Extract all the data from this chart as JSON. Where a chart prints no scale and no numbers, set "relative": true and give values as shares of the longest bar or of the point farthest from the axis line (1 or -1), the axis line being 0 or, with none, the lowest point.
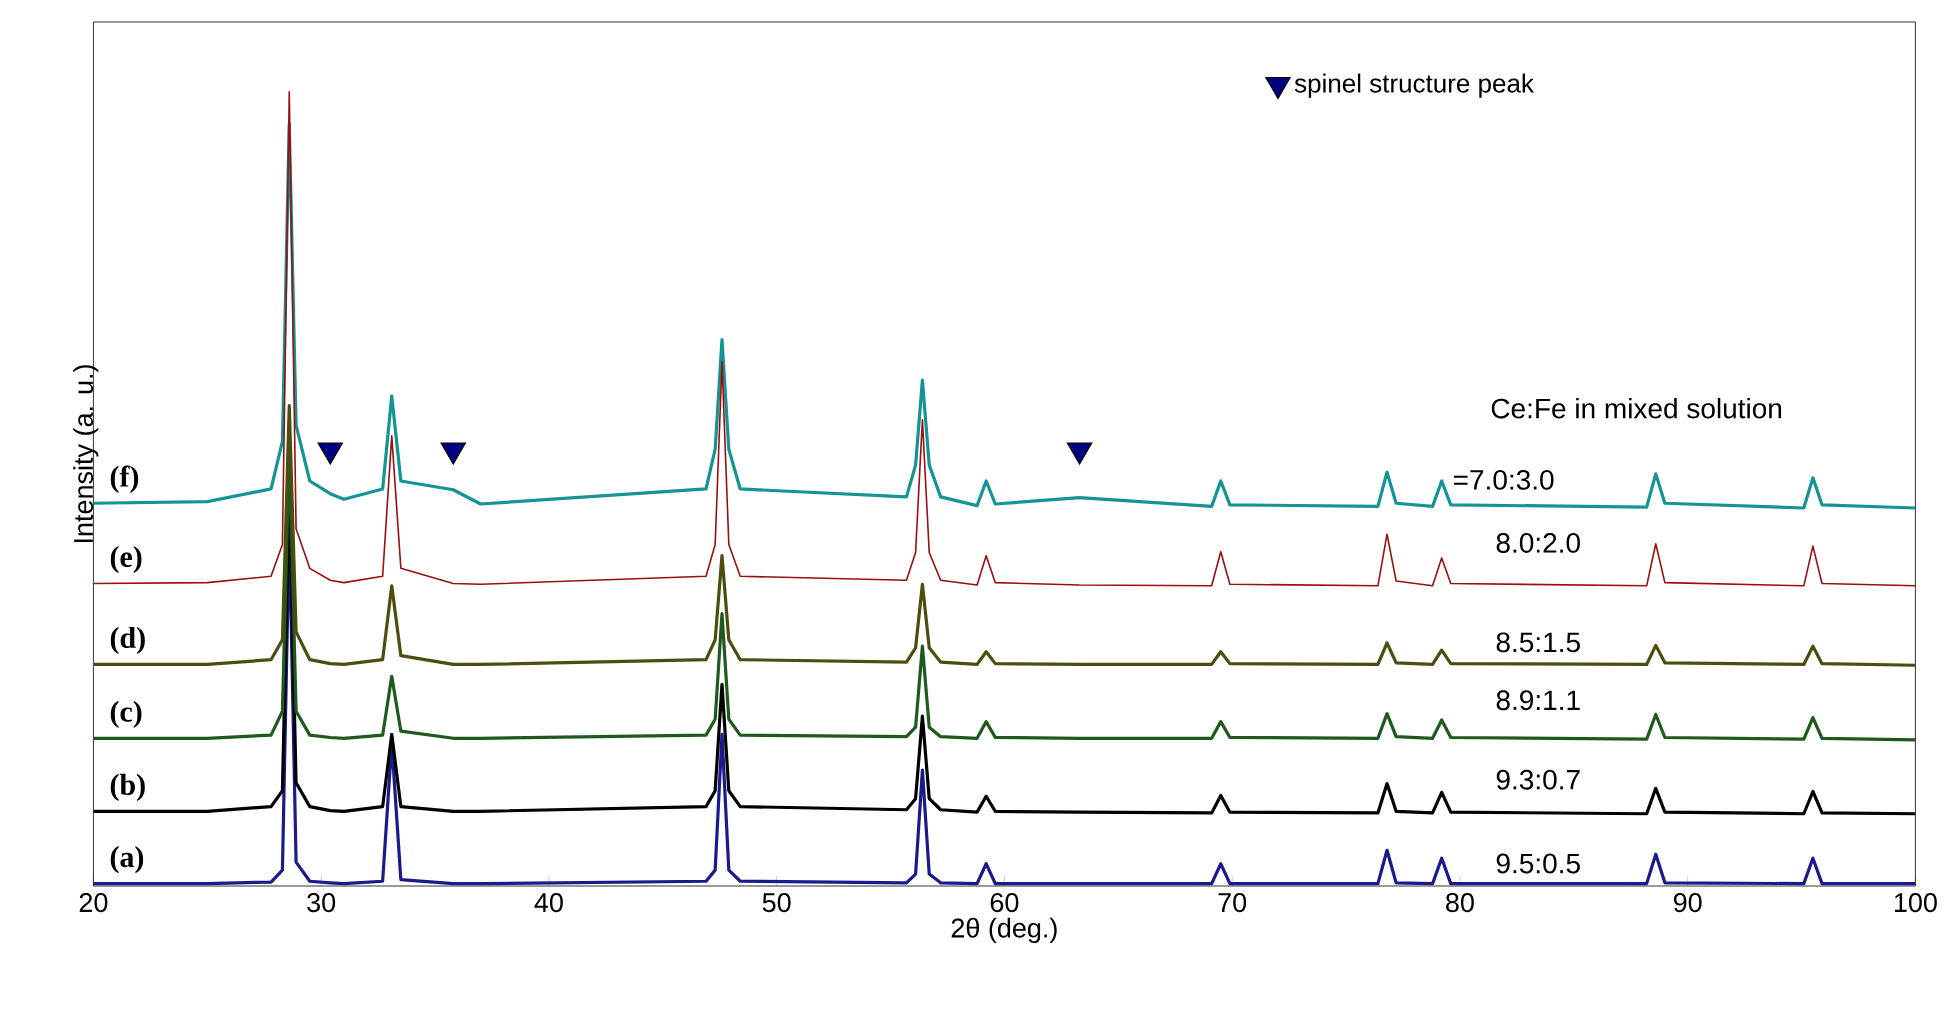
{
  "chart_data": {
    "type": "line",
    "relative": true,
    "xlabel": "2θ (deg.)",
    "ylabel": "Intensity (a. u.)",
    "xlim": [
      20,
      100
    ],
    "xticks": [
      20,
      30,
      40,
      50,
      60,
      70,
      80,
      90,
      100
    ],
    "tick_labels": "x",
    "legend": "top right",
    "x": [
      20,
      25,
      27.8,
      28.3,
      28.6,
      28.9,
      29.5,
      30.4,
      31,
      32.7,
      33.1,
      33.5,
      35.8,
      37,
      46.9,
      47.3,
      47.6,
      47.9,
      48.4,
      55.7,
      56.1,
      56.4,
      56.7,
      57.2,
      58.8,
      59.2,
      59.6,
      63.3,
      69.1,
      69.5,
      69.9,
      76.4,
      76.8,
      77.2,
      78.8,
      79.2,
      79.6,
      88.2,
      88.6,
      89.0,
      95.1,
      95.5,
      95.9,
      100
    ],
    "series": [
      {
        "name": "(a)",
        "color": "#1a1a8c",
        "values": [
          0.003,
          0.003,
          0.005,
          0.02,
          0.45,
          0.03,
          0.006,
          0.004,
          0.003,
          0.006,
          0.18,
          0.008,
          0.003,
          0.003,
          0.006,
          0.02,
          0.191,
          0.02,
          0.006,
          0.004,
          0.015,
          0.146,
          0.015,
          0.004,
          0.003,
          0.028,
          0.003,
          0.003,
          0.003,
          0.028,
          0.003,
          0.003,
          0.045,
          0.004,
          0.003,
          0.035,
          0.003,
          0.003,
          0.04,
          0.004,
          0.003,
          0.035,
          0.003,
          0.003
        ]
      },
      {
        "name": "(b)",
        "color": "#000000",
        "values": [
          0.094,
          0.094,
          0.1,
          0.12,
          0.5,
          0.13,
          0.1,
          0.095,
          0.094,
          0.1,
          0.191,
          0.1,
          0.094,
          0.094,
          0.1,
          0.12,
          0.254,
          0.12,
          0.1,
          0.096,
          0.11,
          0.214,
          0.11,
          0.096,
          0.093,
          0.113,
          0.094,
          0.093,
          0.092,
          0.114,
          0.093,
          0.092,
          0.129,
          0.094,
          0.092,
          0.118,
          0.093,
          0.091,
          0.123,
          0.093,
          0.091,
          0.119,
          0.092,
          0.091
        ]
      },
      {
        "name": "(c)",
        "color": "#1e5a1e",
        "values": [
          0.186,
          0.186,
          0.19,
          0.22,
          0.55,
          0.22,
          0.19,
          0.187,
          0.186,
          0.19,
          0.264,
          0.195,
          0.186,
          0.186,
          0.19,
          0.21,
          0.343,
          0.21,
          0.19,
          0.188,
          0.2,
          0.302,
          0.2,
          0.188,
          0.186,
          0.207,
          0.187,
          0.186,
          0.186,
          0.207,
          0.187,
          0.186,
          0.217,
          0.188,
          0.186,
          0.209,
          0.187,
          0.185,
          0.216,
          0.187,
          0.185,
          0.212,
          0.186,
          0.184
        ]
      },
      {
        "name": "(d)",
        "color": "#4d4d10",
        "values": [
          0.279,
          0.279,
          0.285,
          0.31,
          0.605,
          0.32,
          0.285,
          0.28,
          0.279,
          0.285,
          0.378,
          0.29,
          0.279,
          0.279,
          0.285,
          0.31,
          0.416,
          0.31,
          0.285,
          0.282,
          0.3,
          0.38,
          0.3,
          0.282,
          0.279,
          0.295,
          0.28,
          0.279,
          0.279,
          0.295,
          0.28,
          0.279,
          0.306,
          0.281,
          0.279,
          0.297,
          0.28,
          0.279,
          0.303,
          0.281,
          0.279,
          0.302,
          0.28,
          0.278
        ]
      },
      {
        "name": "(f)",
        "color": "#149494",
        "values": [
          0.482,
          0.484,
          0.5,
          0.56,
          0.96,
          0.58,
          0.51,
          0.494,
          0.487,
          0.5,
          0.617,
          0.51,
          0.499,
          0.481,
          0.5,
          0.55,
          0.688,
          0.55,
          0.5,
          0.49,
          0.53,
          0.637,
          0.53,
          0.49,
          0.479,
          0.51,
          0.481,
          0.489,
          0.478,
          0.51,
          0.48,
          0.478,
          0.521,
          0.482,
          0.478,
          0.51,
          0.48,
          0.477,
          0.519,
          0.482,
          0.476,
          0.514,
          0.48,
          0.476
        ]
      },
      {
        "name": "(e)",
        "color": "#9b0f0f",
        "values": [
          0.381,
          0.382,
          0.39,
          0.43,
          1.0,
          0.45,
          0.4,
          0.385,
          0.382,
          0.39,
          0.567,
          0.4,
          0.381,
          0.38,
          0.39,
          0.43,
          0.66,
          0.43,
          0.39,
          0.385,
          0.42,
          0.587,
          0.42,
          0.385,
          0.379,
          0.416,
          0.382,
          0.379,
          0.378,
          0.421,
          0.38,
          0.378,
          0.443,
          0.384,
          0.378,
          0.413,
          0.381,
          0.378,
          0.431,
          0.382,
          0.378,
          0.428,
          0.381,
          0.378
        ]
      },
      {
        "name": "spinel structure peak",
        "type": "scatter",
        "marker": "triangle",
        "color": "#000080",
        "x": [
          30.4,
          35.8,
          63.3
        ],
        "values": [
          0.549,
          0.549,
          0.549
        ]
      }
    ],
    "annotations": [
      "Ce:Fe in mixed solution",
      "=7.0:3.0",
      "8.0:2.0",
      "8.5:1.5",
      "8.9:1.1",
      "9.3:0.7",
      "9.5:0.5"
    ]
  }
}
